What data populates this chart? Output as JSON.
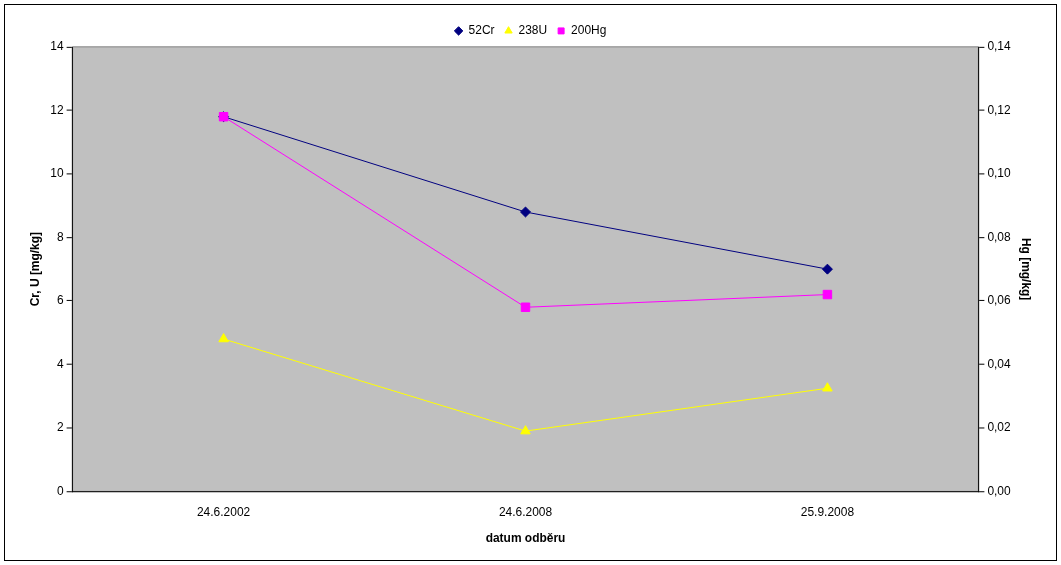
{
  "chart_data": {
    "type": "line",
    "xlabel": "datum odběru",
    "ylabel": "Cr, U [mg/kg]",
    "y2label": "Hg [mg/kg]",
    "categories": [
      "24.6.2002",
      "24.6.2008",
      "25.9.2008"
    ],
    "series": [
      {
        "name": "52Cr",
        "color": "#000080",
        "values": [
          11.8,
          8.8,
          7.0
        ],
        "marker": "diamond"
      },
      {
        "name": "238U",
        "color": "#ffff00",
        "values": [
          4.8,
          1.9,
          3.25
        ],
        "marker": "triangle"
      },
      {
        "name": "200Hg",
        "color": "#ff00ff",
        "values": [
          0.118,
          0.058,
          0.062
        ],
        "marker": "square",
        "axis": "y2"
      }
    ],
    "ylim": [
      0,
      14
    ],
    "yticks": [
      0,
      2,
      4,
      6,
      8,
      10,
      12,
      14
    ],
    "y2lim": [
      0,
      0.14
    ],
    "y2ticks": [
      {
        "value": 0,
        "label": "0,00"
      },
      {
        "value": 0.02,
        "label": "0,02"
      },
      {
        "value": 0.04,
        "label": "0,04"
      },
      {
        "value": 0.06,
        "label": "0,06"
      },
      {
        "value": 0.08,
        "label": "0,08"
      },
      {
        "value": 0.1,
        "label": "0,10"
      },
      {
        "value": 0.12,
        "label": "0,12"
      },
      {
        "value": 0.14,
        "label": "0,14"
      }
    ],
    "grid": false,
    "legend": "top",
    "line_style": "solid"
  }
}
